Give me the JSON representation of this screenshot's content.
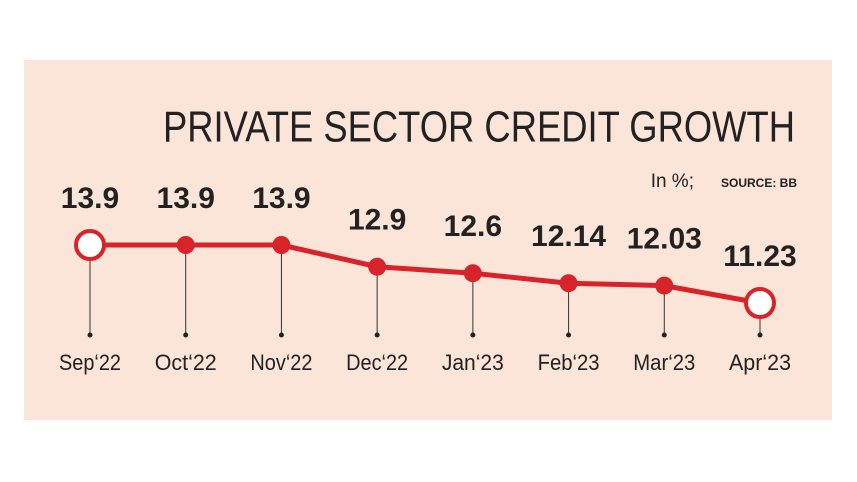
{
  "chart_data": {
    "type": "line",
    "title": "PRIVATE SECTOR CREDIT GROWTH",
    "subtitle": "In %;",
    "source": "SOURCE: BB",
    "categories": [
      "Sep‘22",
      "Oct‘22",
      "Nov‘22",
      "Dec‘22",
      "Jan‘23",
      "Feb‘23",
      "Mar‘23",
      "Apr‘23"
    ],
    "values": [
      13.9,
      13.9,
      13.9,
      12.9,
      12.6,
      12.14,
      12.03,
      11.23
    ],
    "color": "#d8232a"
  }
}
